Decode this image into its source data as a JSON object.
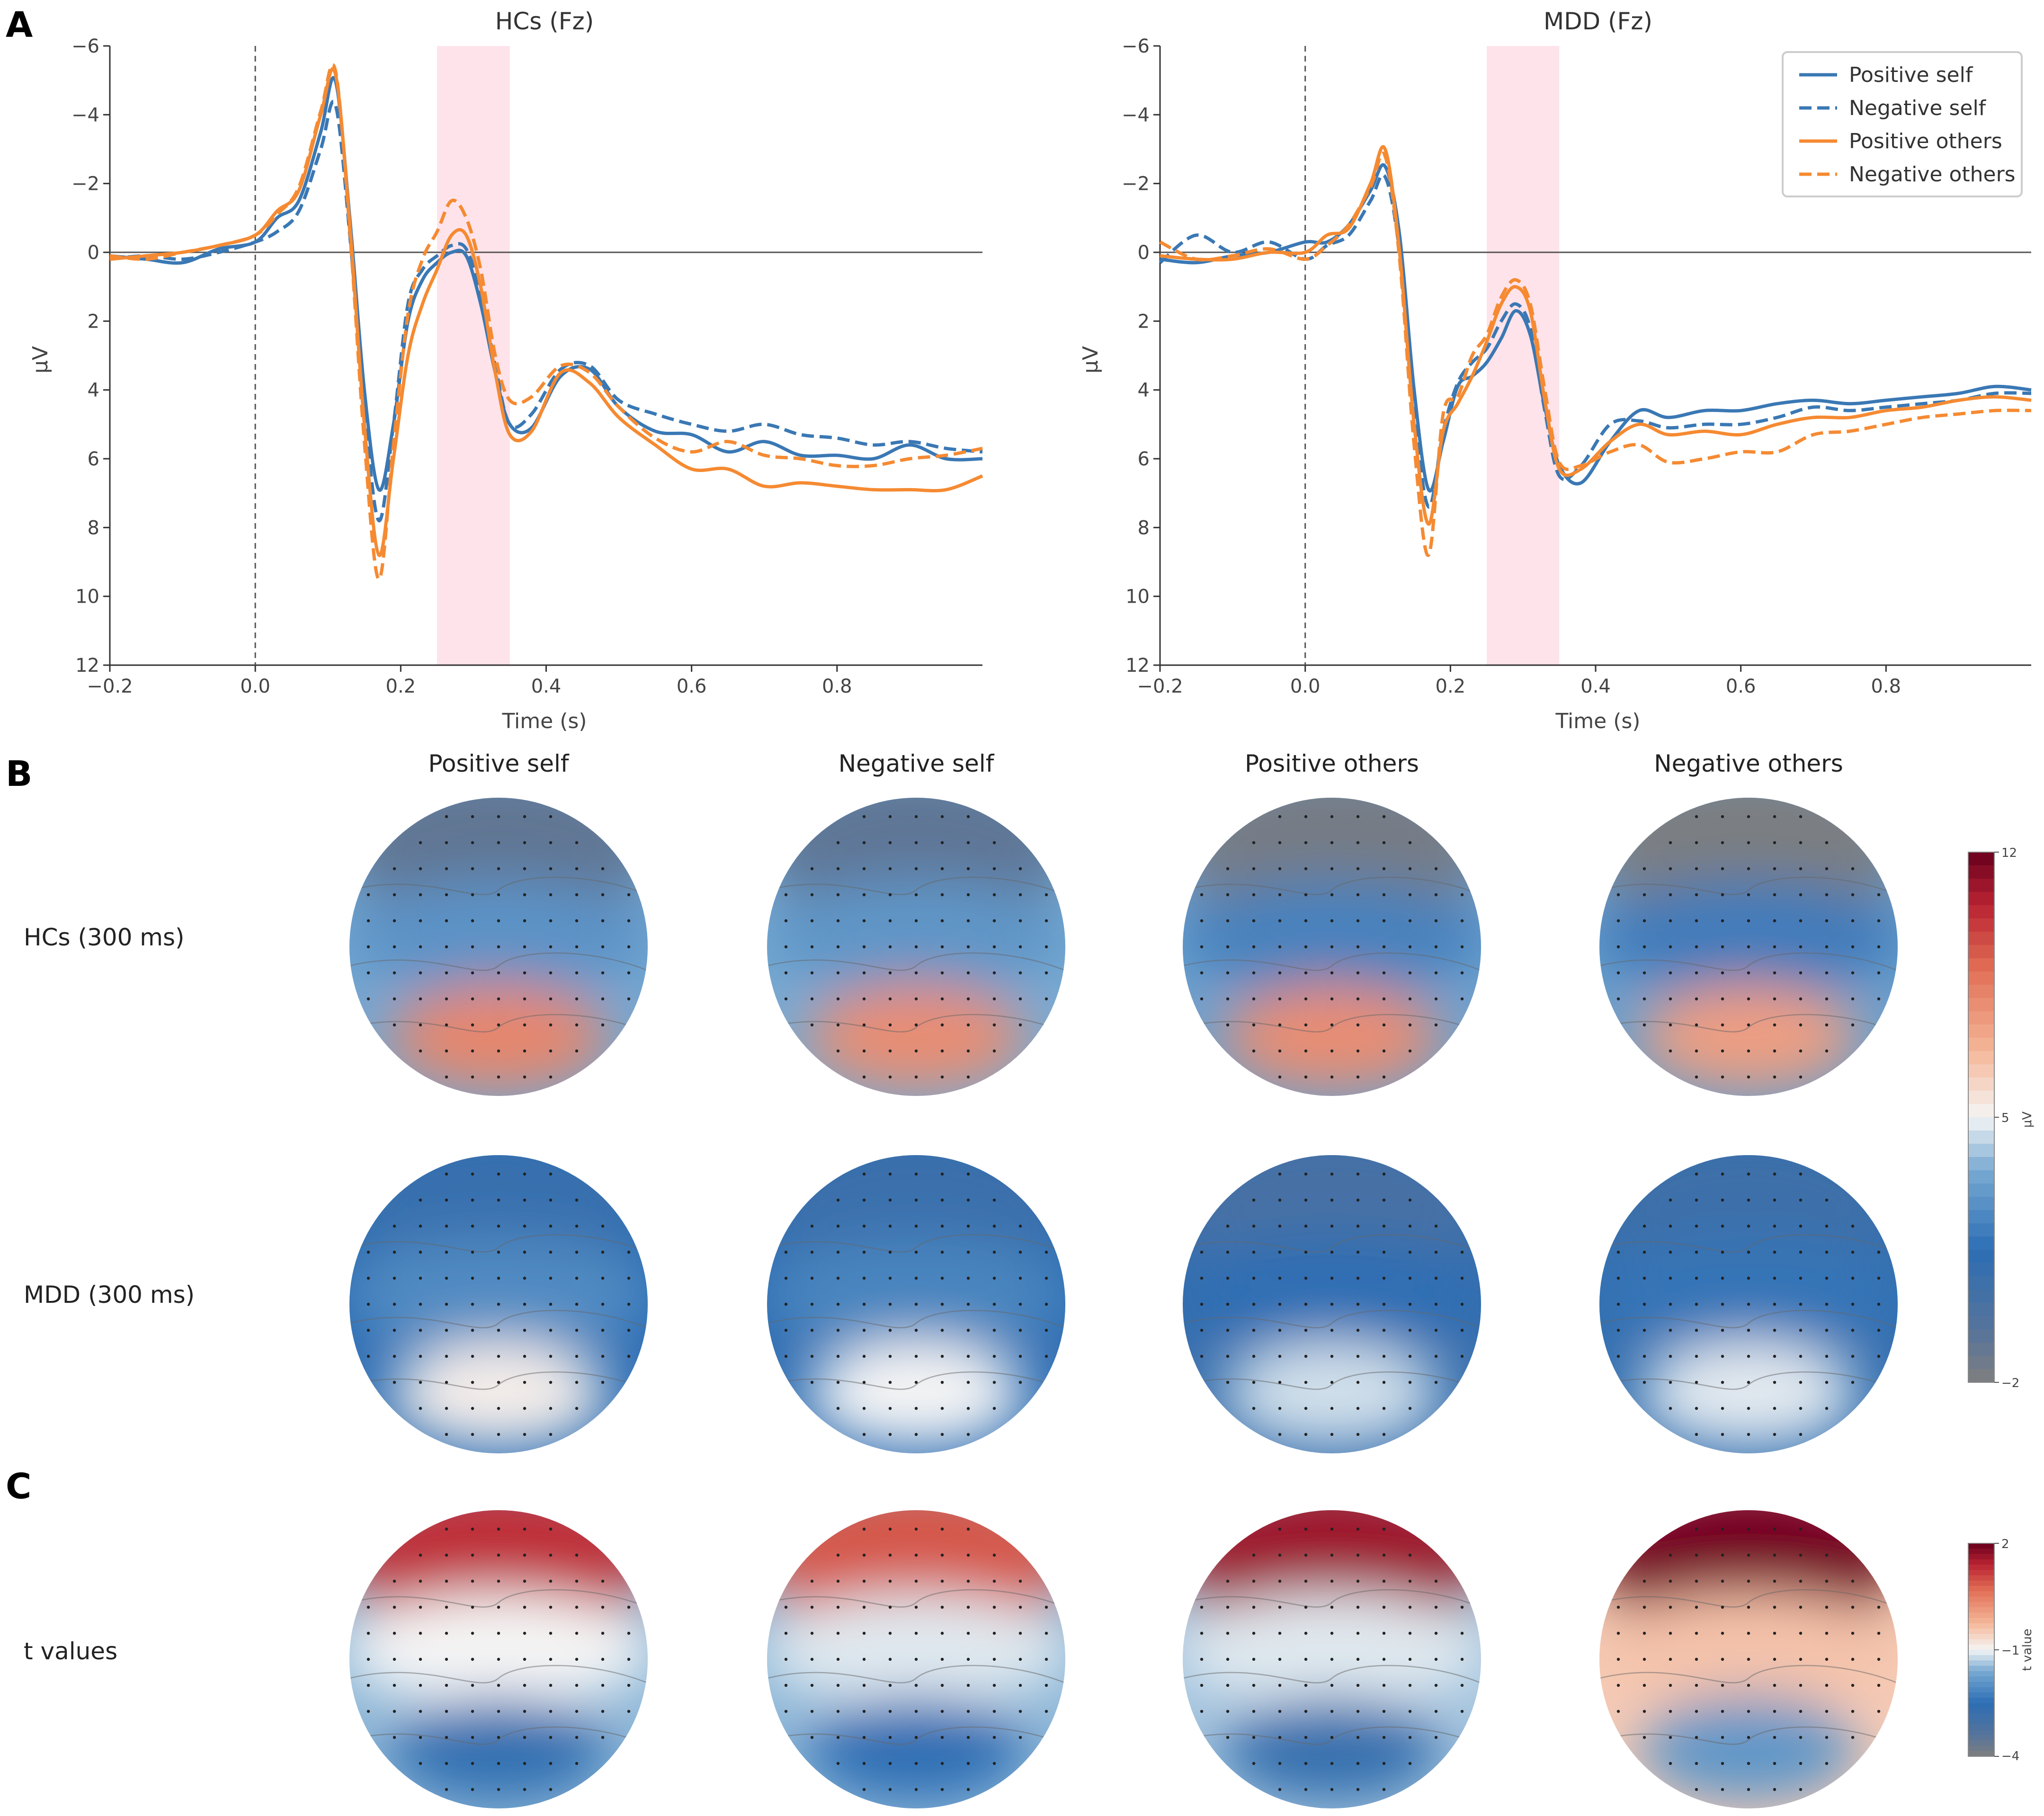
{
  "panels": {
    "a": "A",
    "b": "B",
    "c": "C"
  },
  "chart_data": [
    {
      "type": "line",
      "id": "erp_hc",
      "title": "HCs (Fz)",
      "xlabel": "Time (s)",
      "ylabel": "μV",
      "xlim": [
        -0.2,
        1.0
      ],
      "ylim": [
        12,
        -6
      ],
      "y_inverted": true,
      "xticks": [
        -0.2,
        0.0,
        0.2,
        0.4,
        0.6,
        0.8
      ],
      "xtick_labels": [
        "−0.2",
        "0.0",
        "0.2",
        "0.4",
        "0.6",
        "0.8"
      ],
      "yticks": [
        -6,
        -4,
        -2,
        0,
        2,
        4,
        6,
        8,
        10,
        12
      ],
      "ytick_labels": [
        "−6",
        "−4",
        "−2",
        "0",
        "2",
        "4",
        "6",
        "8",
        "10",
        "12"
      ],
      "shaded_window": [
        0.25,
        0.35
      ],
      "onset_line_x": 0.0,
      "zero_line_y": 0,
      "x": [
        -0.2,
        -0.15,
        -0.1,
        -0.05,
        0.0,
        0.03,
        0.06,
        0.09,
        0.11,
        0.13,
        0.15,
        0.17,
        0.19,
        0.21,
        0.23,
        0.25,
        0.27,
        0.29,
        0.31,
        0.33,
        0.35,
        0.38,
        0.42,
        0.46,
        0.5,
        0.55,
        0.6,
        0.65,
        0.7,
        0.75,
        0.8,
        0.85,
        0.9,
        0.95,
        1.0
      ],
      "series": [
        {
          "name": "Positive self",
          "color": "#3a78b4",
          "dash": "solid",
          "values": [
            0.1,
            0.2,
            0.3,
            -0.1,
            -0.3,
            -1.0,
            -1.5,
            -3.5,
            -5.0,
            -1.0,
            4.0,
            6.9,
            5.0,
            2.0,
            0.8,
            0.3,
            0.0,
            0.1,
            1.5,
            3.5,
            5.0,
            5.1,
            3.6,
            3.4,
            4.5,
            5.2,
            5.3,
            5.8,
            5.5,
            5.9,
            5.9,
            6.0,
            5.6,
            6.0,
            6.0
          ]
        },
        {
          "name": "Negative self",
          "color": "#3a78b4",
          "dash": "dashed",
          "values": [
            0.2,
            0.1,
            0.2,
            0.0,
            -0.3,
            -0.6,
            -1.2,
            -3.0,
            -4.3,
            -0.5,
            4.5,
            7.8,
            5.0,
            1.5,
            0.5,
            0.1,
            -0.2,
            -0.1,
            1.2,
            3.3,
            5.0,
            4.7,
            3.4,
            3.3,
            4.3,
            4.7,
            5.0,
            5.2,
            5.0,
            5.3,
            5.4,
            5.6,
            5.5,
            5.7,
            5.8
          ]
        },
        {
          "name": "Positive others",
          "color": "#f58a32",
          "dash": "solid",
          "values": [
            0.2,
            0.1,
            0.0,
            -0.2,
            -0.5,
            -1.2,
            -1.8,
            -4.0,
            -5.2,
            -0.8,
            5.0,
            8.8,
            6.0,
            3.0,
            1.5,
            0.5,
            -0.5,
            -0.5,
            1.0,
            3.5,
            5.3,
            5.2,
            3.5,
            3.8,
            4.8,
            5.6,
            6.3,
            6.3,
            6.8,
            6.7,
            6.8,
            6.9,
            6.9,
            6.9,
            6.5
          ]
        },
        {
          "name": "Negative others",
          "color": "#f58a32",
          "dash": "dashed",
          "values": [
            0.1,
            0.2,
            0.0,
            -0.2,
            -0.5,
            -1.1,
            -1.9,
            -4.1,
            -5.3,
            -0.6,
            5.5,
            9.5,
            5.6,
            1.8,
            0.2,
            -0.6,
            -1.5,
            -1.0,
            0.5,
            3.0,
            4.3,
            4.2,
            3.3,
            3.5,
            4.5,
            5.4,
            5.8,
            5.5,
            5.9,
            6.0,
            6.2,
            6.2,
            6.0,
            5.9,
            5.7
          ]
        }
      ]
    },
    {
      "type": "line",
      "id": "erp_mdd",
      "title": "MDD (Fz)",
      "xlabel": "Time (s)",
      "ylabel": "μV",
      "xlim": [
        -0.2,
        1.0
      ],
      "ylim": [
        12,
        -6
      ],
      "y_inverted": true,
      "xticks": [
        -0.2,
        0.0,
        0.2,
        0.4,
        0.6,
        0.8
      ],
      "xtick_labels": [
        "−0.2",
        "0.0",
        "0.2",
        "0.4",
        "0.6",
        "0.8"
      ],
      "yticks": [
        -6,
        -4,
        -2,
        0,
        2,
        4,
        6,
        8,
        10,
        12
      ],
      "ytick_labels": [
        "−6",
        "−4",
        "−2",
        "0",
        "2",
        "4",
        "6",
        "8",
        "10",
        "12"
      ],
      "shaded_window": [
        0.25,
        0.35
      ],
      "onset_line_x": 0.0,
      "zero_line_y": 0,
      "legend": {
        "entries": [
          "Positive self",
          "Negative self",
          "Positive others",
          "Negative others"
        ],
        "loc": "upper right"
      },
      "x": [
        -0.2,
        -0.15,
        -0.1,
        -0.05,
        0.0,
        0.03,
        0.06,
        0.09,
        0.11,
        0.13,
        0.15,
        0.17,
        0.19,
        0.21,
        0.23,
        0.25,
        0.27,
        0.29,
        0.31,
        0.33,
        0.35,
        0.38,
        0.42,
        0.46,
        0.5,
        0.55,
        0.6,
        0.65,
        0.7,
        0.75,
        0.8,
        0.85,
        0.9,
        0.95,
        1.0
      ],
      "series": [
        {
          "name": "Positive self",
          "color": "#3a78b4",
          "dash": "solid",
          "values": [
            0.2,
            0.3,
            0.1,
            0.0,
            -0.3,
            -0.3,
            -0.8,
            -1.8,
            -2.5,
            -0.5,
            4.0,
            6.9,
            5.5,
            3.9,
            3.6,
            3.2,
            2.5,
            1.7,
            2.4,
            4.5,
            6.2,
            6.7,
            5.5,
            4.6,
            4.8,
            4.6,
            4.6,
            4.4,
            4.3,
            4.4,
            4.3,
            4.2,
            4.1,
            3.9,
            4.0
          ]
        },
        {
          "name": "Negative self",
          "color": "#3a78b4",
          "dash": "dashed",
          "values": [
            0.3,
            -0.5,
            0.0,
            -0.3,
            0.2,
            -0.2,
            -0.5,
            -1.5,
            -2.2,
            0.0,
            4.6,
            7.4,
            5.2,
            3.8,
            3.2,
            2.8,
            2.0,
            1.5,
            2.2,
            4.6,
            6.5,
            6.2,
            5.0,
            4.9,
            5.1,
            5.0,
            5.0,
            4.8,
            4.5,
            4.6,
            4.5,
            4.4,
            4.3,
            4.1,
            4.1
          ]
        },
        {
          "name": "Positive others",
          "color": "#f58a32",
          "dash": "solid",
          "values": [
            0.1,
            0.2,
            0.2,
            0.0,
            0.0,
            -0.5,
            -0.7,
            -2.0,
            -3.0,
            0.0,
            5.0,
            7.9,
            5.2,
            4.4,
            3.6,
            2.6,
            1.5,
            1.0,
            1.7,
            4.3,
            6.3,
            6.3,
            5.5,
            5.0,
            5.3,
            5.2,
            5.3,
            5.0,
            4.8,
            4.8,
            4.6,
            4.5,
            4.3,
            4.2,
            4.3
          ]
        },
        {
          "name": "Negative others",
          "color": "#f58a32",
          "dash": "dashed",
          "values": [
            -0.3,
            0.2,
            0.1,
            -0.1,
            0.2,
            -0.2,
            -0.8,
            -1.9,
            -2.8,
            0.2,
            5.6,
            8.8,
            4.7,
            4.2,
            3.0,
            2.4,
            1.3,
            0.8,
            1.5,
            4.0,
            6.1,
            6.2,
            5.8,
            5.6,
            6.1,
            6.0,
            5.8,
            5.8,
            5.3,
            5.2,
            5.0,
            4.8,
            4.7,
            4.6,
            4.6
          ]
        }
      ]
    },
    {
      "type": "heatmap",
      "id": "topo_amplitude",
      "description_kind": "topographic maps",
      "columns": [
        "Positive self",
        "Negative self",
        "Positive others",
        "Negative others"
      ],
      "rows": [
        "HCs (300 ms)",
        "MDD (300 ms)"
      ],
      "colorbar": {
        "label": "μV",
        "min": -2,
        "max": 12,
        "ticks": [
          12,
          5,
          -2
        ],
        "tick_labels": [
          "12",
          "5",
          "−2"
        ]
      },
      "maps": [
        [
          {
            "frontal": -1.0,
            "central": 2.8,
            "posterior": 8.2,
            "edge": 3.5
          },
          {
            "frontal": -0.9,
            "central": 2.9,
            "posterior": 8.0,
            "edge": 3.6
          },
          {
            "frontal": -1.7,
            "central": 2.2,
            "posterior": 8.0,
            "edge": 3.3
          },
          {
            "frontal": -1.9,
            "central": 2.0,
            "posterior": 7.5,
            "edge": 3.2
          }
        ],
        [
          {
            "frontal": 1.0,
            "central": 2.5,
            "posterior": 5.2,
            "edge": 1.5
          },
          {
            "frontal": 0.8,
            "central": 2.3,
            "posterior": 5.0,
            "edge": 1.4
          },
          {
            "frontal": 0.2,
            "central": 1.5,
            "posterior": 4.6,
            "edge": 1.0
          },
          {
            "frontal": 0.6,
            "central": 1.7,
            "posterior": 4.8,
            "edge": 1.2
          }
        ]
      ]
    },
    {
      "type": "heatmap",
      "id": "topo_t",
      "description_kind": "topographic maps",
      "columns": [
        "Positive self",
        "Negative self",
        "Positive others",
        "Negative others"
      ],
      "rows": [
        "t values"
      ],
      "colorbar": {
        "label": "t value",
        "min": -4,
        "max": 2,
        "ticks": [
          2,
          -1,
          -4
        ],
        "tick_labels": [
          "2",
          "−1",
          "−4"
        ]
      },
      "maps": [
        [
          {
            "frontal": 1.3,
            "central": -1.0,
            "posterior": -2.6,
            "edge": -1.5
          },
          {
            "frontal": 0.9,
            "central": -1.1,
            "posterior": -2.5,
            "edge": -1.5
          },
          {
            "frontal": 1.6,
            "central": -1.1,
            "posterior": -2.7,
            "edge": -1.4
          },
          {
            "frontal": 1.9,
            "central": -0.4,
            "posterior": -1.9,
            "edge": -0.5
          }
        ]
      ]
    }
  ]
}
